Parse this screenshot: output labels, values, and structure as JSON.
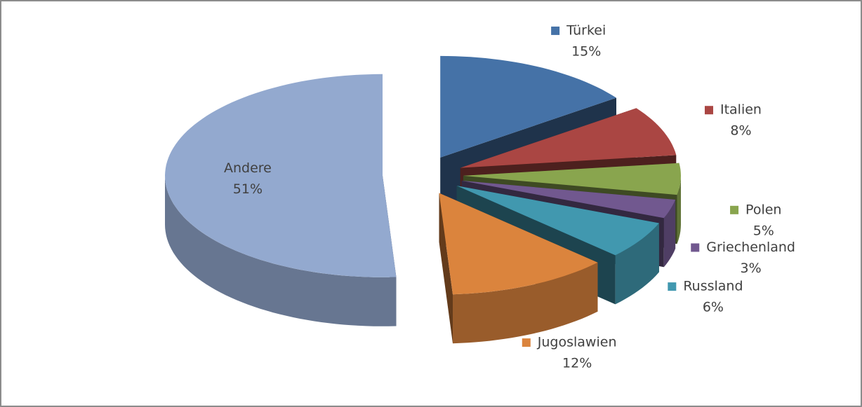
{
  "chart_data": {
    "type": "pie",
    "categories": [
      "Türkei",
      "Italien",
      "Polen",
      "Griechenland",
      "Russland",
      "Jugoslawien",
      "Andere"
    ],
    "values": [
      15,
      8,
      5,
      3,
      6,
      12,
      51
    ],
    "value_labels": [
      "15%",
      "8%",
      "5%",
      "3%",
      "6%",
      "12%",
      "51%"
    ],
    "colors": [
      "#4572a7",
      "#aa4643",
      "#89a54e",
      "#71588f",
      "#4198af",
      "#db843d",
      "#93a9cf"
    ]
  }
}
